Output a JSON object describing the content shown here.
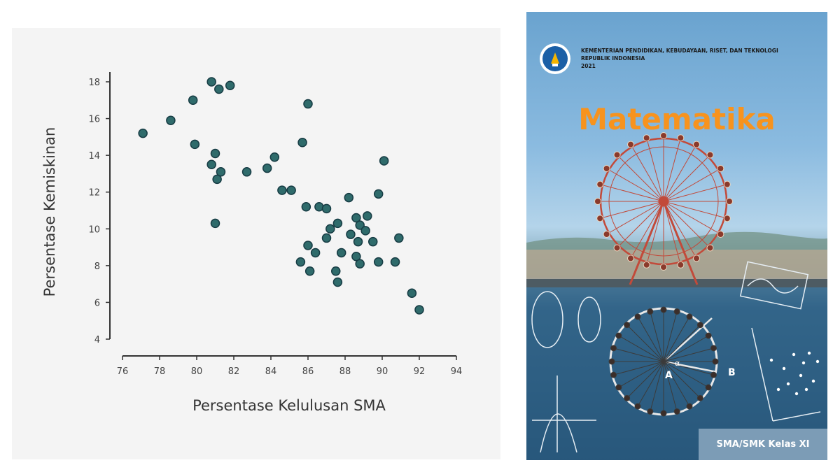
{
  "chart_data": {
    "type": "scatter",
    "title": "",
    "xlabel": "Persentase Kelulusan SMA",
    "ylabel": "Persentase Kemiskinan",
    "xlim": [
      76,
      94
    ],
    "ylim": [
      4,
      18
    ],
    "x_ticks": [
      "76",
      "78",
      "80",
      "82",
      "84",
      "86",
      "88",
      "90",
      "92",
      "94"
    ],
    "y_ticks": [
      "4",
      "6",
      "8",
      "10",
      "12",
      "14",
      "16",
      "18"
    ],
    "grid": false,
    "marker_color": "#2f6b6b",
    "marker_edge_color": "#173c44",
    "points": [
      {
        "x": 77.1,
        "y": 15.2
      },
      {
        "x": 78.6,
        "y": 15.9
      },
      {
        "x": 79.8,
        "y": 17.0
      },
      {
        "x": 79.9,
        "y": 14.6
      },
      {
        "x": 80.8,
        "y": 18.0
      },
      {
        "x": 81.2,
        "y": 17.6
      },
      {
        "x": 81.8,
        "y": 17.8
      },
      {
        "x": 81.0,
        "y": 14.1
      },
      {
        "x": 80.8,
        "y": 13.5
      },
      {
        "x": 81.3,
        "y": 13.1
      },
      {
        "x": 81.1,
        "y": 12.7
      },
      {
        "x": 81.0,
        "y": 10.3
      },
      {
        "x": 82.7,
        "y": 13.1
      },
      {
        "x": 83.8,
        "y": 13.3
      },
      {
        "x": 84.2,
        "y": 13.9
      },
      {
        "x": 84.6,
        "y": 12.1
      },
      {
        "x": 85.1,
        "y": 12.1
      },
      {
        "x": 85.7,
        "y": 14.7
      },
      {
        "x": 86.0,
        "y": 16.8
      },
      {
        "x": 85.9,
        "y": 11.2
      },
      {
        "x": 86.6,
        "y": 11.2
      },
      {
        "x": 87.0,
        "y": 11.1
      },
      {
        "x": 86.0,
        "y": 9.1
      },
      {
        "x": 86.4,
        "y": 8.7
      },
      {
        "x": 85.6,
        "y": 8.2
      },
      {
        "x": 86.1,
        "y": 7.7
      },
      {
        "x": 87.0,
        "y": 9.5
      },
      {
        "x": 87.2,
        "y": 10.0
      },
      {
        "x": 87.6,
        "y": 10.3
      },
      {
        "x": 87.8,
        "y": 8.7
      },
      {
        "x": 87.5,
        "y": 7.7
      },
      {
        "x": 87.6,
        "y": 7.1
      },
      {
        "x": 88.2,
        "y": 11.7
      },
      {
        "x": 88.3,
        "y": 9.7
      },
      {
        "x": 88.6,
        "y": 10.6
      },
      {
        "x": 88.8,
        "y": 10.2
      },
      {
        "x": 88.7,
        "y": 9.3
      },
      {
        "x": 89.1,
        "y": 9.9
      },
      {
        "x": 89.2,
        "y": 10.7
      },
      {
        "x": 88.6,
        "y": 8.5
      },
      {
        "x": 88.8,
        "y": 8.1
      },
      {
        "x": 89.5,
        "y": 9.3
      },
      {
        "x": 89.8,
        "y": 11.9
      },
      {
        "x": 90.1,
        "y": 13.7
      },
      {
        "x": 89.8,
        "y": 8.2
      },
      {
        "x": 90.7,
        "y": 8.2
      },
      {
        "x": 90.9,
        "y": 9.5
      },
      {
        "x": 91.6,
        "y": 6.5
      },
      {
        "x": 92.0,
        "y": 5.6
      }
    ]
  },
  "book_cover": {
    "institution_line1": "KEMENTERIAN PENDIDIKAN, KEBUDAYAAN, RISET, DAN TEKNOLOGI",
    "institution_line2": "REPUBLIK INDONESIA",
    "year": "2021",
    "title": "Matematika",
    "grade": "SMA/SMK Kelas XI",
    "title_color": "#f7931e",
    "diagram_labels": [
      "A",
      "B",
      "α"
    ]
  }
}
